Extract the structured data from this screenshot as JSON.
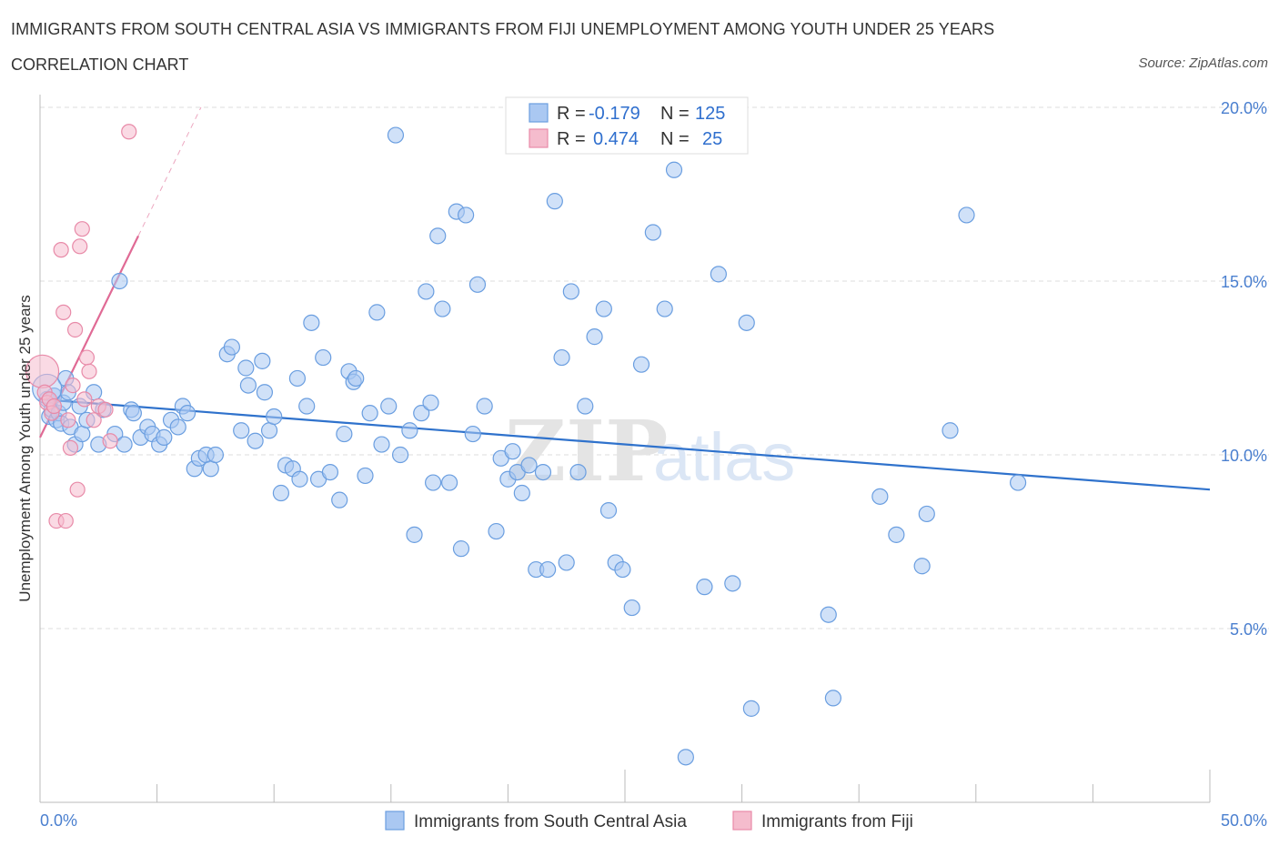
{
  "header": {
    "title": "IMMIGRANTS FROM SOUTH CENTRAL ASIA VS IMMIGRANTS FROM FIJI UNEMPLOYMENT AMONG YOUTH UNDER 25 YEARS",
    "subtitle": "CORRELATION CHART",
    "source": "Source: ZipAtlas.com"
  },
  "colors": {
    "blue_fill": "#aac8f2",
    "blue_stroke": "#6a9ee0",
    "blue_line": "#2f72cc",
    "pink_fill": "#f5bccd",
    "pink_stroke": "#e88aa8",
    "pink_line": "#e06a95",
    "grid": "#dcdcdc",
    "tick_label": "#4a7fcf"
  },
  "legend": {
    "rows": [
      {
        "r_label": "R =",
        "r_value": "-0.179",
        "n_label": "N =",
        "n_value": "125"
      },
      {
        "r_label": "R =",
        "r_value": "0.474",
        "n_label": "N =",
        "n_value": "25"
      }
    ]
  },
  "chart_data": {
    "type": "scatter",
    "ylabel": "Unemployment Among Youth under 25 years",
    "xlabel": "",
    "xlim": [
      0,
      50
    ],
    "ylim": [
      0,
      20.0
    ],
    "x_tick_labels": [
      "0.0%",
      "50.0%"
    ],
    "y_ticks": [
      5,
      10,
      15,
      20
    ],
    "y_tick_labels": [
      "5.0%",
      "10.0%",
      "15.0%",
      "20.0%"
    ],
    "grid": true,
    "watermark": "ZIPatlas",
    "legend_position": "top-center",
    "series": [
      {
        "name": "Immigrants from South Central Asia",
        "color": "blue",
        "trend": {
          "x0": 0,
          "y0": 11.6,
          "x1": 50,
          "y1": 9.0
        },
        "points": [
          [
            0.3,
            11.6
          ],
          [
            0.4,
            11.1
          ],
          [
            0.5,
            11.3
          ],
          [
            0.6,
            11.7
          ],
          [
            0.7,
            11.0
          ],
          [
            0.8,
            11.2
          ],
          [
            0.9,
            10.9
          ],
          [
            1.0,
            11.5
          ],
          [
            1.1,
            12.2
          ],
          [
            1.2,
            11.8
          ],
          [
            1.3,
            10.8
          ],
          [
            1.5,
            10.3
          ],
          [
            1.7,
            11.4
          ],
          [
            1.8,
            10.6
          ],
          [
            2.0,
            11.0
          ],
          [
            2.3,
            11.8
          ],
          [
            2.5,
            10.3
          ],
          [
            2.7,
            11.3
          ],
          [
            3.2,
            10.6
          ],
          [
            3.4,
            15.0
          ],
          [
            3.6,
            10.3
          ],
          [
            3.9,
            11.3
          ],
          [
            4.0,
            11.2
          ],
          [
            4.3,
            10.5
          ],
          [
            4.6,
            10.8
          ],
          [
            4.8,
            10.6
          ],
          [
            5.1,
            10.3
          ],
          [
            5.3,
            10.5
          ],
          [
            5.6,
            11.0
          ],
          [
            5.9,
            10.8
          ],
          [
            6.1,
            11.4
          ],
          [
            6.3,
            11.2
          ],
          [
            6.6,
            9.6
          ],
          [
            6.8,
            9.9
          ],
          [
            7.1,
            10.0
          ],
          [
            7.3,
            9.6
          ],
          [
            7.5,
            10.0
          ],
          [
            8.0,
            12.9
          ],
          [
            8.2,
            13.1
          ],
          [
            8.6,
            10.7
          ],
          [
            8.8,
            12.5
          ],
          [
            8.9,
            12.0
          ],
          [
            9.2,
            10.4
          ],
          [
            9.5,
            12.7
          ],
          [
            9.6,
            11.8
          ],
          [
            9.8,
            10.7
          ],
          [
            10.0,
            11.1
          ],
          [
            10.3,
            8.9
          ],
          [
            10.5,
            9.7
          ],
          [
            10.8,
            9.6
          ],
          [
            11.0,
            12.2
          ],
          [
            11.1,
            9.3
          ],
          [
            11.4,
            11.4
          ],
          [
            11.6,
            13.8
          ],
          [
            11.9,
            9.3
          ],
          [
            12.1,
            12.8
          ],
          [
            12.4,
            9.5
          ],
          [
            12.8,
            8.7
          ],
          [
            13.0,
            10.6
          ],
          [
            13.2,
            12.4
          ],
          [
            13.4,
            12.1
          ],
          [
            13.5,
            12.2
          ],
          [
            13.9,
            9.4
          ],
          [
            14.1,
            11.2
          ],
          [
            14.4,
            14.1
          ],
          [
            14.6,
            10.3
          ],
          [
            14.9,
            11.4
          ],
          [
            15.2,
            19.2
          ],
          [
            15.4,
            10.0
          ],
          [
            15.8,
            10.7
          ],
          [
            16.0,
            7.7
          ],
          [
            16.3,
            11.2
          ],
          [
            16.5,
            14.7
          ],
          [
            16.7,
            11.5
          ],
          [
            16.8,
            9.2
          ],
          [
            17.0,
            16.3
          ],
          [
            17.2,
            14.2
          ],
          [
            17.5,
            9.2
          ],
          [
            17.8,
            17.0
          ],
          [
            18.0,
            7.3
          ],
          [
            18.2,
            16.9
          ],
          [
            18.5,
            10.6
          ],
          [
            18.7,
            14.9
          ],
          [
            19.0,
            11.4
          ],
          [
            19.5,
            7.8
          ],
          [
            19.7,
            9.9
          ],
          [
            20.0,
            9.3
          ],
          [
            20.2,
            10.1
          ],
          [
            20.4,
            9.5
          ],
          [
            20.6,
            8.9
          ],
          [
            20.9,
            9.7
          ],
          [
            21.2,
            6.7
          ],
          [
            21.5,
            9.5
          ],
          [
            21.7,
            6.7
          ],
          [
            22.0,
            17.3
          ],
          [
            22.3,
            12.8
          ],
          [
            22.5,
            6.9
          ],
          [
            22.7,
            14.7
          ],
          [
            23.0,
            9.5
          ],
          [
            23.3,
            11.4
          ],
          [
            23.7,
            13.4
          ],
          [
            24.1,
            14.2
          ],
          [
            24.3,
            8.4
          ],
          [
            24.6,
            6.9
          ],
          [
            24.9,
            6.7
          ],
          [
            25.3,
            5.6
          ],
          [
            25.7,
            12.6
          ],
          [
            26.2,
            16.4
          ],
          [
            26.7,
            14.2
          ],
          [
            27.1,
            18.2
          ],
          [
            27.6,
            1.3
          ],
          [
            28.4,
            6.2
          ],
          [
            29.0,
            15.2
          ],
          [
            29.6,
            6.3
          ],
          [
            30.2,
            13.8
          ],
          [
            30.4,
            2.7
          ],
          [
            33.7,
            5.4
          ],
          [
            33.9,
            3.0
          ],
          [
            35.9,
            8.8
          ],
          [
            36.6,
            7.7
          ],
          [
            37.7,
            6.8
          ],
          [
            37.9,
            8.3
          ],
          [
            38.9,
            10.7
          ],
          [
            39.6,
            16.9
          ],
          [
            41.8,
            9.2
          ]
        ]
      },
      {
        "name": "Immigrants from Fiji",
        "color": "pink",
        "trend": {
          "x0": 0,
          "y0": 10.5,
          "x1": 4.2,
          "y1": 16.3
        },
        "points": [
          [
            0.1,
            12.4
          ],
          [
            0.2,
            11.8
          ],
          [
            0.3,
            11.5
          ],
          [
            0.4,
            11.6
          ],
          [
            0.5,
            11.2
          ],
          [
            0.6,
            11.4
          ],
          [
            0.7,
            8.1
          ],
          [
            0.9,
            15.9
          ],
          [
            1.0,
            14.1
          ],
          [
            1.1,
            8.1
          ],
          [
            1.2,
            11.0
          ],
          [
            1.3,
            10.2
          ],
          [
            1.4,
            12.0
          ],
          [
            1.5,
            13.6
          ],
          [
            1.6,
            9.0
          ],
          [
            1.7,
            16.0
          ],
          [
            1.8,
            16.5
          ],
          [
            1.9,
            11.6
          ],
          [
            2.0,
            12.8
          ],
          [
            2.1,
            12.4
          ],
          [
            2.3,
            11.0
          ],
          [
            2.5,
            11.4
          ],
          [
            3.0,
            10.4
          ],
          [
            3.8,
            19.3
          ],
          [
            2.8,
            11.3
          ]
        ]
      }
    ]
  },
  "bottom_legend": {
    "items": [
      {
        "label": "Immigrants from South Central Asia"
      },
      {
        "label": "Immigrants from Fiji"
      }
    ]
  }
}
